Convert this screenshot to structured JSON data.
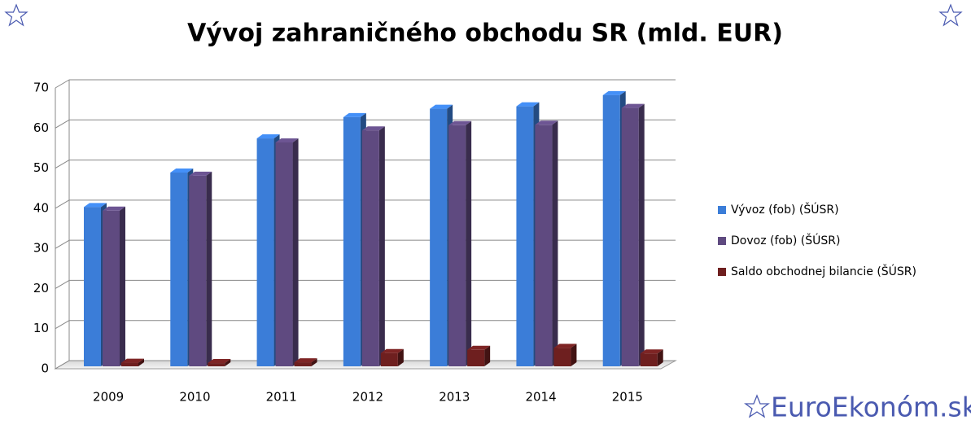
{
  "chart_data": {
    "type": "bar3d",
    "title": "Vývoj zahraničného obchodu SR (mld. EUR)",
    "categories": [
      "2009",
      "2010",
      "2011",
      "2012",
      "2013",
      "2014",
      "2015"
    ],
    "series": [
      {
        "name": "Vývoz (fob) (ŠÚSR)",
        "color": "#3b7dd8",
        "values": [
          39.7,
          48.3,
          56.8,
          62.1,
          64.2,
          64.8,
          67.6
        ]
      },
      {
        "name": "Dovoz (fob)  (ŠÚSR)",
        "color": "#5f4a80",
        "values": [
          38.8,
          47.5,
          55.8,
          58.8,
          60.1,
          60.2,
          64.4
        ]
      },
      {
        "name": "Saldo obchodnej bilancie (ŠÚSR)",
        "color": "#6e1f1f",
        "values": [
          0.9,
          0.8,
          1.0,
          3.3,
          4.1,
          4.6,
          3.2
        ]
      }
    ],
    "ylim": [
      0,
      70
    ],
    "yticks": [
      0,
      10,
      20,
      30,
      40,
      50,
      60,
      70
    ],
    "grid": true,
    "legend": "right",
    "watermark": "EuroEkonóm.sk"
  }
}
